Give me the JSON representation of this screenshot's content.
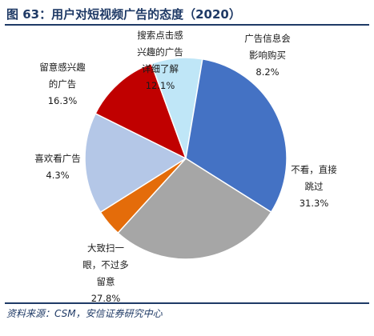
{
  "figure": {
    "title": "图 63：用户对短视频广告的态度（2020）",
    "source": "资料来源：CSM，安信证券研究中心"
  },
  "chart_data": {
    "type": "pie",
    "unit": "%",
    "slices": [
      {
        "label_lines": [
          "广告信息会",
          "影响购买"
        ],
        "pct": "8.2%",
        "value": 8.2,
        "color": "#bfe6f7"
      },
      {
        "label_lines": [
          "不看，直接",
          "跳过"
        ],
        "pct": "31.3%",
        "value": 31.3,
        "color": "#4472c4"
      },
      {
        "label_lines": [
          "大致扫一",
          "眼，不过多",
          "留意"
        ],
        "pct": "27.8%",
        "value": 27.8,
        "color": "#a6a6a6"
      },
      {
        "label_lines": [
          "喜欢看广告"
        ],
        "pct": "4.3%",
        "value": 4.3,
        "color": "#e46c0a"
      },
      {
        "label_lines": [
          "留意感兴趣",
          "的广告"
        ],
        "pct": "16.3%",
        "value": 16.3,
        "color": "#b4c7e7"
      },
      {
        "label_lines": [
          "搜索点击感",
          "兴趣的广告",
          "详细了解"
        ],
        "pct": "12.1%",
        "value": 12.1,
        "color": "#c00000"
      }
    ]
  }
}
